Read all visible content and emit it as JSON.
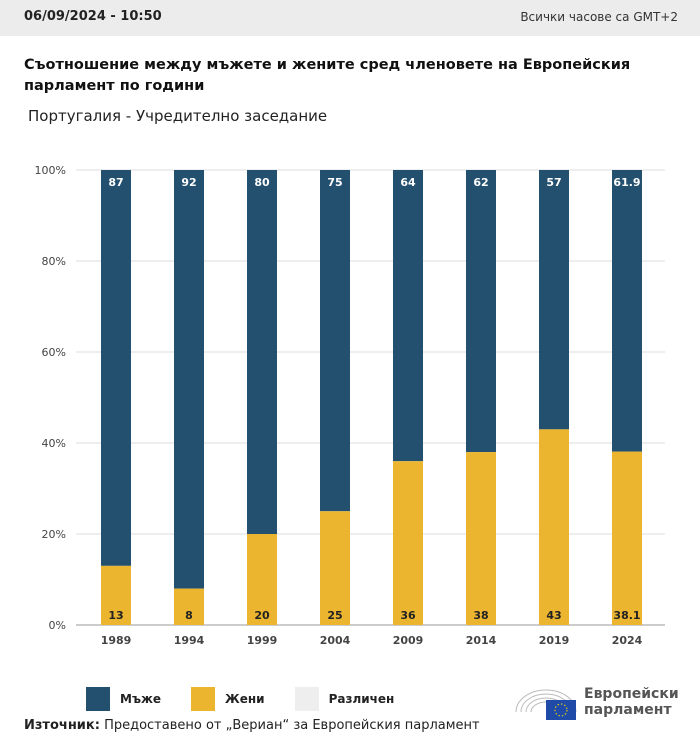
{
  "header": {
    "date": "06/09/2024 - 10:50",
    "timezone": "Всички часове са GMT+2"
  },
  "title": "Съотношение между мъжете и жените сред членовете на Европейския парламент по години",
  "subtitle": "Португалия - Учредително заседание",
  "chart_data": {
    "type": "bar",
    "stacked": true,
    "categories": [
      "1989",
      "1994",
      "1999",
      "2004",
      "2009",
      "2014",
      "2019",
      "2024"
    ],
    "series": [
      {
        "name": "Мъже",
        "color": "#24506f",
        "values": [
          87,
          92,
          80,
          75,
          64,
          62,
          57,
          61.9
        ]
      },
      {
        "name": "Жени",
        "color": "#ecb530",
        "values": [
          13,
          8,
          20,
          25,
          36,
          38,
          43,
          38.1
        ]
      },
      {
        "name": "Различен",
        "color": "#eeeeee",
        "values": [
          0,
          0,
          0,
          0,
          0,
          0,
          0,
          0
        ]
      }
    ],
    "ylim": [
      0,
      100
    ],
    "yticks": [
      "0%",
      "20%",
      "40%",
      "60%",
      "80%",
      "100%"
    ],
    "grid": true,
    "legend": "bottom-left"
  },
  "source": {
    "label": "Източник:",
    "text": " Предоставено от „Вериан“ за Европейския парламент"
  },
  "logo": {
    "line1": "Европейски",
    "line2": "парламент"
  }
}
